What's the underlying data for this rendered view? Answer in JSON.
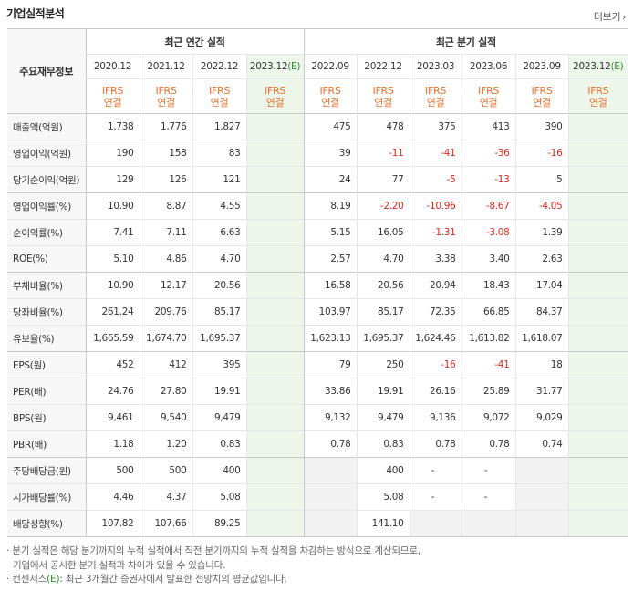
{
  "title": "기업실적분석",
  "more_label": "더보기",
  "header": {
    "corner": "주요재무정보",
    "annual_group": "최근 연간 실적",
    "quarter_group": "최근 분기 실적",
    "annual_periods": [
      "2020.12",
      "2021.12",
      "2022.12",
      "2023.12(E)"
    ],
    "quarter_periods": [
      "2022.09",
      "2022.12",
      "2023.03",
      "2023.06",
      "2023.09",
      "2023.12(E)"
    ],
    "basis_top": "IFRS",
    "basis_bottom": "연결"
  },
  "rows": [
    {
      "label": "매출액(억원)",
      "annual": [
        "1,738",
        "1,776",
        "1,827",
        ""
      ],
      "quarter": [
        "475",
        "478",
        "375",
        "413",
        "390",
        ""
      ]
    },
    {
      "label": "영업이익(억원)",
      "annual": [
        "190",
        "158",
        "83",
        ""
      ],
      "quarter": [
        "39",
        "-11",
        "-41",
        "-36",
        "-16",
        ""
      ]
    },
    {
      "label": "당기순이익(억원)",
      "annual": [
        "129",
        "126",
        "121",
        ""
      ],
      "quarter": [
        "24",
        "77",
        "-5",
        "-13",
        "5",
        ""
      ]
    },
    {
      "label": "영업이익률(%)",
      "annual": [
        "10.90",
        "8.87",
        "4.55",
        ""
      ],
      "quarter": [
        "8.19",
        "-2.20",
        "-10.96",
        "-8.67",
        "-4.05",
        ""
      ]
    },
    {
      "label": "순이익률(%)",
      "annual": [
        "7.41",
        "7.11",
        "6.63",
        ""
      ],
      "quarter": [
        "5.15",
        "16.05",
        "-1.31",
        "-3.08",
        "1.39",
        ""
      ]
    },
    {
      "label": "ROE(%)",
      "annual": [
        "5.10",
        "4.86",
        "4.70",
        ""
      ],
      "quarter": [
        "2.57",
        "4.70",
        "3.38",
        "3.40",
        "2.63",
        ""
      ]
    },
    {
      "label": "부채비율(%)",
      "annual": [
        "10.90",
        "12.17",
        "20.56",
        ""
      ],
      "quarter": [
        "16.58",
        "20.56",
        "20.94",
        "18.43",
        "17.04",
        ""
      ]
    },
    {
      "label": "당좌비율(%)",
      "annual": [
        "261.24",
        "209.76",
        "85.17",
        ""
      ],
      "quarter": [
        "103.97",
        "85.17",
        "72.35",
        "66.85",
        "84.37",
        ""
      ]
    },
    {
      "label": "유보율(%)",
      "annual": [
        "1,665.59",
        "1,674.70",
        "1,695.37",
        ""
      ],
      "quarter": [
        "1,623.13",
        "1,695.37",
        "1,624.46",
        "1,613.82",
        "1,618.07",
        ""
      ]
    },
    {
      "label": "EPS(원)",
      "annual": [
        "452",
        "412",
        "395",
        ""
      ],
      "quarter": [
        "79",
        "250",
        "-16",
        "-41",
        "18",
        ""
      ]
    },
    {
      "label": "PER(배)",
      "annual": [
        "24.76",
        "27.80",
        "19.91",
        ""
      ],
      "quarter": [
        "33.86",
        "19.91",
        "26.16",
        "25.89",
        "31.77",
        ""
      ]
    },
    {
      "label": "BPS(원)",
      "annual": [
        "9,461",
        "9,540",
        "9,479",
        ""
      ],
      "quarter": [
        "9,132",
        "9,479",
        "9,136",
        "9,072",
        "9,029",
        ""
      ]
    },
    {
      "label": "PBR(배)",
      "annual": [
        "1.18",
        "1.20",
        "0.83",
        ""
      ],
      "quarter": [
        "0.78",
        "0.83",
        "0.78",
        "0.78",
        "0.74",
        ""
      ]
    },
    {
      "label": "주당배당금(원)",
      "annual": [
        "500",
        "500",
        "400",
        ""
      ],
      "quarter": [
        "",
        "400",
        "-",
        "-",
        "",
        ""
      ]
    },
    {
      "label": "시가배당률(%)",
      "annual": [
        "4.46",
        "4.37",
        "5.08",
        ""
      ],
      "quarter": [
        "",
        "5.08",
        "-",
        "-",
        "",
        ""
      ]
    },
    {
      "label": "배당성향(%)",
      "annual": [
        "107.82",
        "107.66",
        "89.25",
        ""
      ],
      "quarter": [
        "",
        "141.10",
        "",
        "",
        "",
        ""
      ]
    }
  ],
  "notes": {
    "line1": "· 분기 실적은 해당 분기까지의 누적 실적에서 직전 분기까지의 누적 실적을 차감하는 방식으로 계산되므로,",
    "line2": "기업에서 공시한 분기 실적과 차이가 있을 수 있습니다.",
    "line3_prefix": "· 컨센서스",
    "line3_mark": "(E)",
    "line3_suffix": ": 최근 3개월간 증권사에서 발표한 전망치의 평균값입니다."
  }
}
